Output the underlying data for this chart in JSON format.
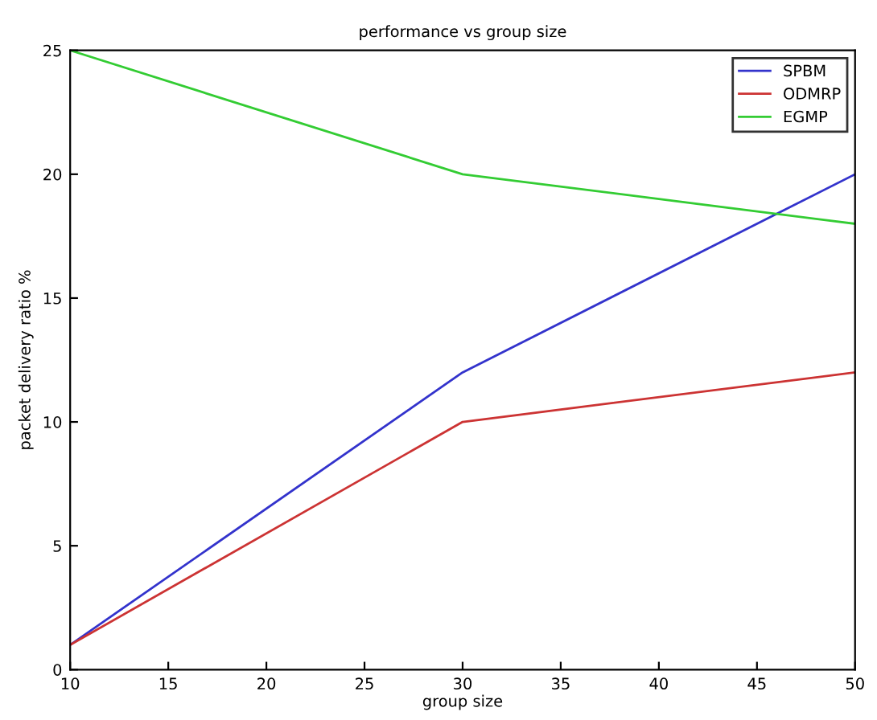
{
  "chart_data": {
    "type": "line",
    "title": "performance vs group size",
    "xlabel": "group size",
    "ylabel": "packet delivery ratio %",
    "x": [
      10,
      30,
      50
    ],
    "series": [
      {
        "name": "SPBM",
        "color": "#3333cc",
        "values": [
          1,
          12,
          20
        ]
      },
      {
        "name": "ODMRP",
        "color": "#cc3333",
        "values": [
          1,
          10,
          12
        ]
      },
      {
        "name": "EGMP",
        "color": "#33cc33",
        "values": [
          25,
          20,
          18
        ]
      }
    ],
    "xlim": [
      10,
      50
    ],
    "ylim": [
      0,
      25
    ],
    "xticks": [
      10,
      15,
      20,
      25,
      30,
      35,
      40,
      45,
      50
    ],
    "yticks": [
      0,
      5,
      10,
      15,
      20,
      25
    ],
    "grid": false,
    "legend": "top right",
    "marker": "none",
    "line_style": "solid"
  }
}
